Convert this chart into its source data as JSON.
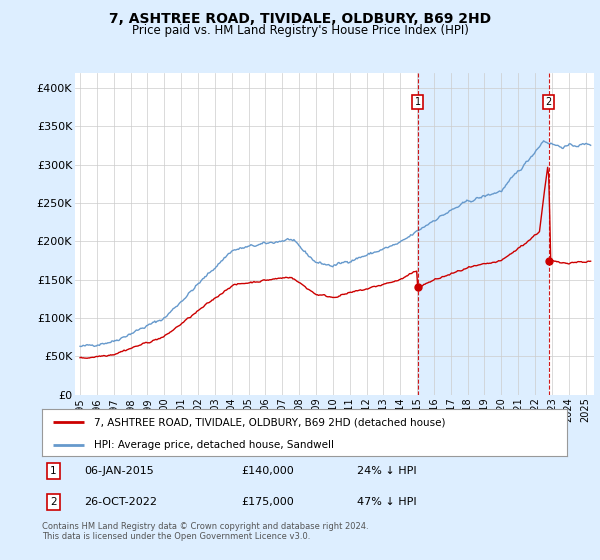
{
  "title": "7, ASHTREE ROAD, TIVIDALE, OLDBURY, B69 2HD",
  "subtitle": "Price paid vs. HM Land Registry's House Price Index (HPI)",
  "ylim": [
    0,
    420000
  ],
  "yticks": [
    0,
    50000,
    100000,
    150000,
    200000,
    250000,
    300000,
    350000,
    400000
  ],
  "ytick_labels": [
    "£0",
    "£50K",
    "£100K",
    "£150K",
    "£200K",
    "£250K",
    "£300K",
    "£350K",
    "£400K"
  ],
  "xlim_start": 1994.7,
  "xlim_end": 2025.5,
  "xticks": [
    1995,
    1996,
    1997,
    1998,
    1999,
    2000,
    2001,
    2002,
    2003,
    2004,
    2005,
    2006,
    2007,
    2008,
    2009,
    2010,
    2011,
    2012,
    2013,
    2014,
    2015,
    2016,
    2017,
    2018,
    2019,
    2020,
    2021,
    2022,
    2023,
    2024,
    2025
  ],
  "transaction1": {
    "year": 2015.03,
    "price": 140000,
    "label": "1",
    "date": "06-JAN-2015",
    "hpi_pct": "24% ↓ HPI"
  },
  "transaction2": {
    "year": 2022.82,
    "price": 175000,
    "label": "2",
    "date": "26-OCT-2022",
    "hpi_pct": "47% ↓ HPI"
  },
  "legend_property": "7, ASHTREE ROAD, TIVIDALE, OLDBURY, B69 2HD (detached house)",
  "legend_hpi": "HPI: Average price, detached house, Sandwell",
  "footnote": "Contains HM Land Registry data © Crown copyright and database right 2024.\nThis data is licensed under the Open Government Licence v3.0.",
  "property_line_color": "#cc0000",
  "hpi_line_color": "#6699cc",
  "background_color": "#ddeeff",
  "plot_bg_color": "#ffffff",
  "shade_color": "#ddeeff",
  "grid_color": "#cccccc",
  "dashed_line_color": "#cc0000",
  "marker_box_color": "#cc0000"
}
